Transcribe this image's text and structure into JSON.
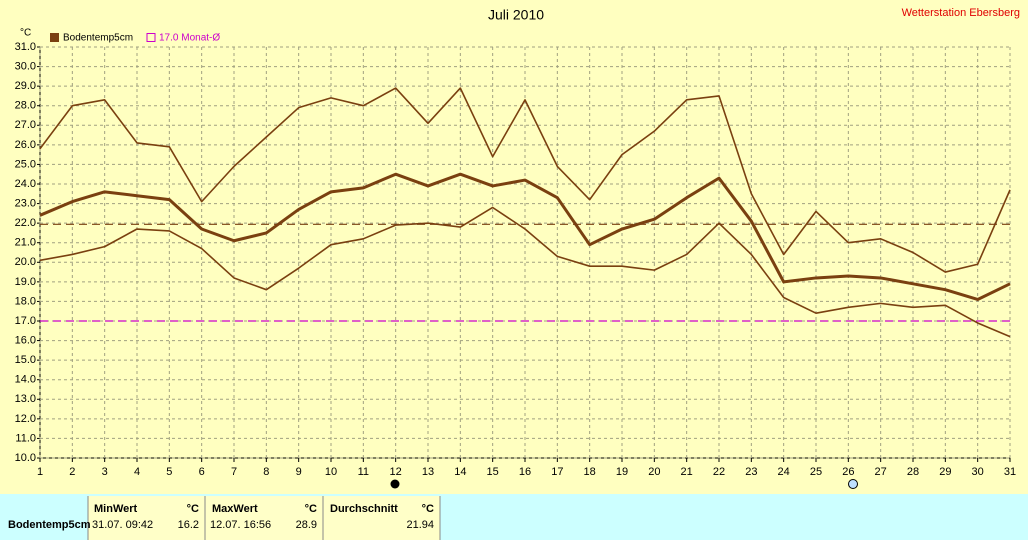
{
  "chart_data": {
    "type": "line",
    "title": "Juli 2010",
    "station": "Wetterstation Ebersberg",
    "y_unit": "°C",
    "categories": [
      "1",
      "2",
      "3",
      "4",
      "5",
      "6",
      "7",
      "8",
      "9",
      "10",
      "11",
      "12",
      "13",
      "14",
      "15",
      "16",
      "17",
      "18",
      "19",
      "20",
      "21",
      "22",
      "23",
      "24",
      "25",
      "26",
      "27",
      "28",
      "29",
      "30",
      "31"
    ],
    "series": [
      {
        "name": "Bodentemp5cm",
        "color": "#7a4010",
        "values": [
          22.4,
          23.1,
          23.6,
          23.4,
          23.2,
          21.7,
          21.1,
          21.5,
          22.7,
          23.6,
          23.8,
          24.5,
          23.9,
          24.5,
          23.9,
          24.2,
          23.3,
          20.9,
          21.7,
          22.2,
          23.3,
          24.3,
          22.1,
          19.0,
          19.2,
          19.3,
          19.2,
          18.9,
          18.6,
          18.1,
          18.9
        ],
        "max": [
          25.8,
          28.0,
          28.3,
          26.1,
          25.9,
          23.1,
          24.9,
          26.4,
          27.9,
          28.4,
          28.0,
          28.9,
          27.1,
          28.9,
          25.4,
          28.3,
          24.9,
          23.2,
          25.5,
          26.7,
          28.3,
          28.5,
          23.5,
          20.4,
          22.6,
          21.0,
          21.2,
          20.5,
          19.5,
          19.9,
          23.7
        ],
        "min": [
          20.1,
          20.4,
          20.8,
          21.7,
          21.6,
          20.7,
          19.2,
          18.6,
          19.7,
          20.9,
          21.2,
          21.9,
          22.0,
          21.8,
          22.8,
          21.7,
          20.3,
          19.8,
          19.8,
          19.6,
          20.4,
          22.0,
          20.4,
          18.2,
          17.4,
          17.7,
          17.9,
          17.7,
          17.8,
          16.9,
          16.2
        ]
      }
    ],
    "reference_lines": [
      {
        "value": 21.94,
        "color": "#7a4010"
      },
      {
        "value": 17,
        "label": "17.0 Monat-Ø",
        "color": "#cc00cc"
      }
    ],
    "ylim": [
      10,
      31
    ],
    "yticks": [
      {
        "value": 10,
        "label": "10.0"
      },
      {
        "value": 11,
        "label": "11.0"
      },
      {
        "value": 12,
        "label": "12.0"
      },
      {
        "value": 13,
        "label": "13.0"
      },
      {
        "value": 14,
        "label": "14.0"
      },
      {
        "value": 15,
        "label": "15.0"
      },
      {
        "value": 16,
        "label": "16.0"
      },
      {
        "value": 17,
        "label": "17.0"
      },
      {
        "value": 18,
        "label": "18.0"
      },
      {
        "value": 19,
        "label": "19.0"
      },
      {
        "value": 20,
        "label": "20.0"
      },
      {
        "value": 21,
        "label": "21.0"
      },
      {
        "value": 22,
        "label": "22.0"
      },
      {
        "value": 23,
        "label": "23.0"
      },
      {
        "value": 24,
        "label": "24.0"
      },
      {
        "value": 25,
        "label": "25.0"
      },
      {
        "value": 26,
        "label": "26.0"
      },
      {
        "value": 27,
        "label": "27.0"
      },
      {
        "value": 28,
        "label": "28.0"
      },
      {
        "value": 29,
        "label": "29.0"
      },
      {
        "value": 30,
        "label": "30.0"
      },
      {
        "value": 31,
        "label": "31.0"
      }
    ],
    "grid": true
  },
  "table": {
    "headers": [
      "MinWert",
      "°C",
      "MaxWert",
      "°C",
      "Durchschnitt",
      "°C"
    ],
    "rows": [
      [
        "Bodentemp5cm",
        "31.07.  09:42",
        "16.2",
        "12.07.  16:56",
        "28.9",
        "21.94"
      ]
    ]
  }
}
